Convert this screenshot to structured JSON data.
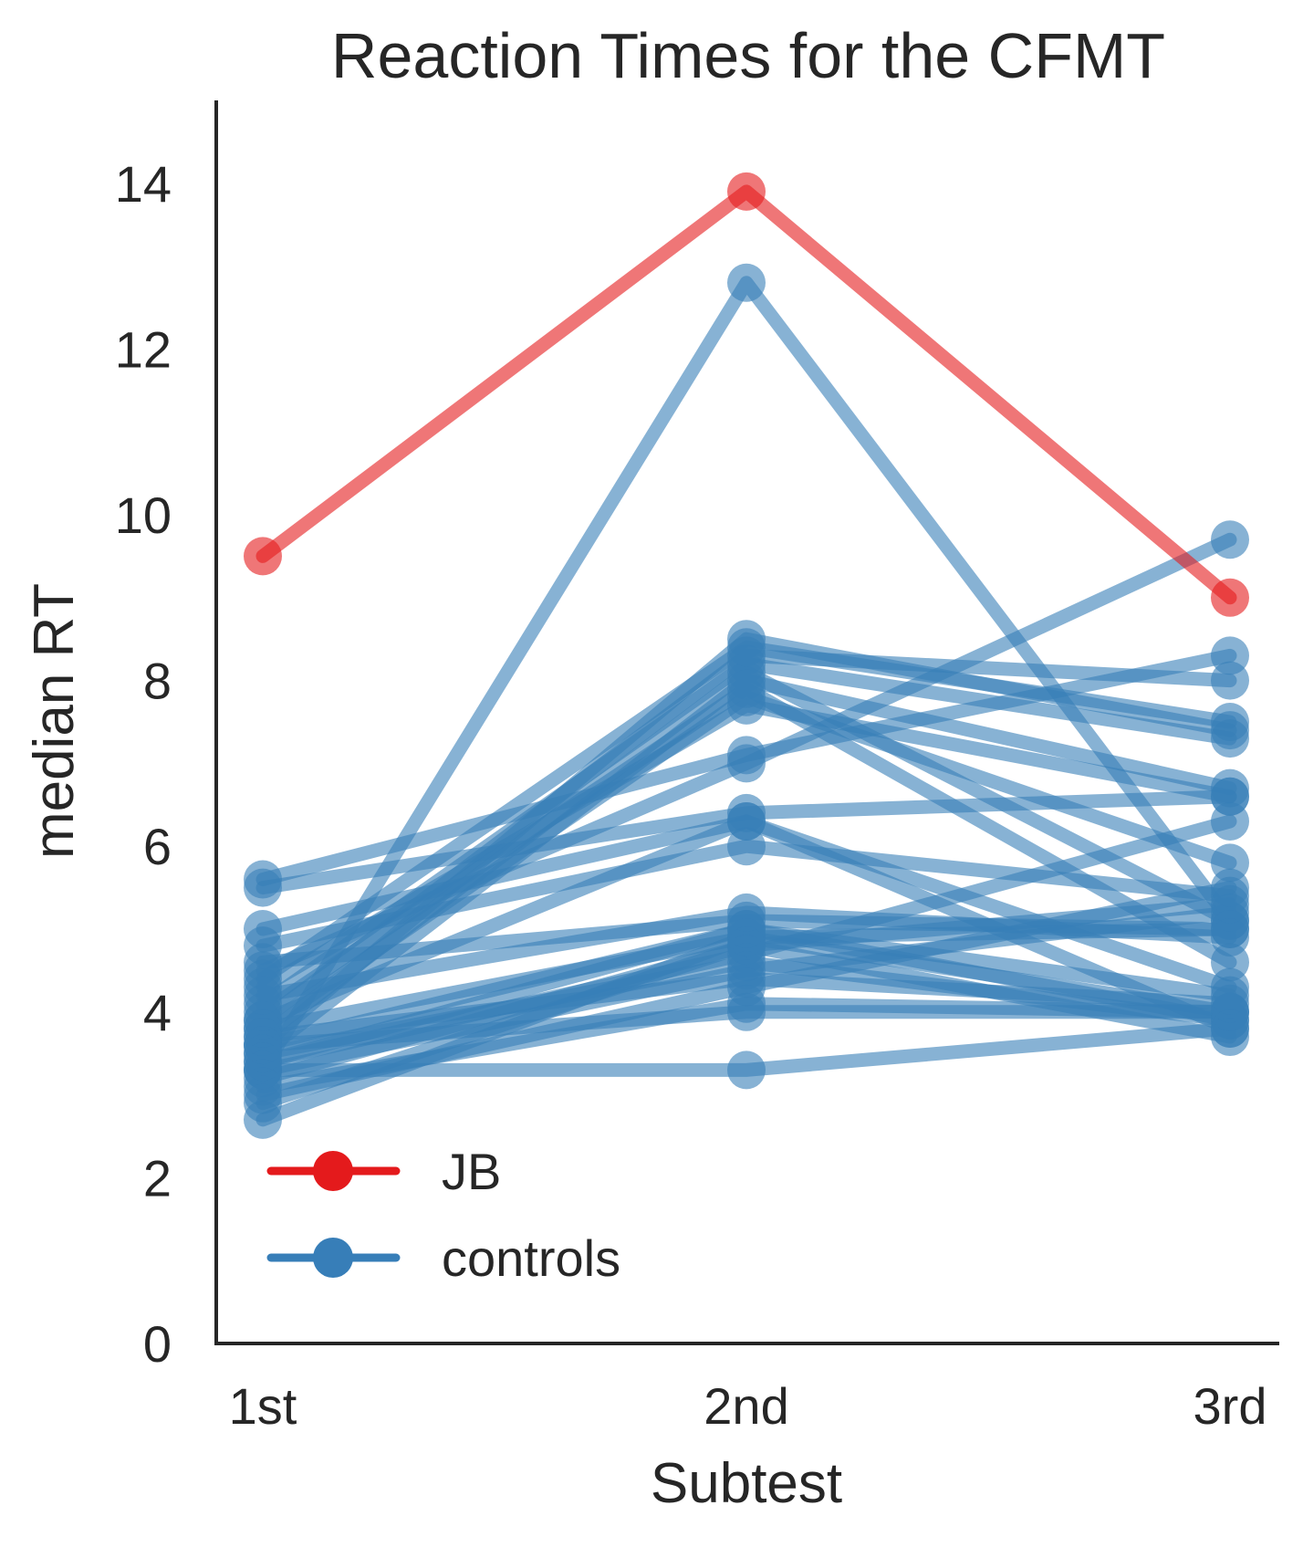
{
  "chart_data": {
    "type": "line",
    "title": "Reaction Times for the CFMT",
    "xlabel": "Subtest",
    "ylabel": "median RT",
    "categories": [
      "1st",
      "2nd",
      "3rd"
    ],
    "ylim": [
      0,
      15
    ],
    "yticks": [
      0,
      2,
      4,
      6,
      8,
      10,
      12,
      14
    ],
    "grid": false,
    "legend": {
      "position": "lower-left",
      "entries": [
        "JB",
        "controls"
      ]
    },
    "colors": {
      "JB": "#e41a1c",
      "controls": "#377eb8",
      "axis": "#262626"
    },
    "series": [
      {
        "name": "JB",
        "values": [
          9.5,
          13.9,
          9.0
        ]
      },
      {
        "name": "controls",
        "group": "controls",
        "values": [
          3.3,
          12.8,
          5.1
        ]
      },
      {
        "name": "controls",
        "group": "controls",
        "values": [
          3.6,
          8.5,
          7.4
        ]
      },
      {
        "name": "controls",
        "group": "controls",
        "values": [
          3.9,
          8.3,
          8.0
        ]
      },
      {
        "name": "controls",
        "group": "controls",
        "values": [
          4.1,
          8.2,
          7.3
        ]
      },
      {
        "name": "controls",
        "group": "controls",
        "values": [
          3.5,
          8.0,
          6.7
        ]
      },
      {
        "name": "controls",
        "group": "controls",
        "values": [
          3.8,
          7.8,
          5.8
        ]
      },
      {
        "name": "controls",
        "group": "controls",
        "values": [
          4.3,
          7.7,
          6.6
        ]
      },
      {
        "name": "controls",
        "group": "controls",
        "values": [
          3.7,
          8.1,
          5.1
        ]
      },
      {
        "name": "controls",
        "group": "controls",
        "values": [
          4.4,
          8.4,
          7.5
        ]
      },
      {
        "name": "controls",
        "group": "controls",
        "values": [
          4.0,
          7.9,
          4.6
        ]
      },
      {
        "name": "controls",
        "group": "controls",
        "values": [
          4.5,
          7.0,
          9.7
        ]
      },
      {
        "name": "controls",
        "group": "controls",
        "values": [
          5.6,
          7.1,
          8.3
        ]
      },
      {
        "name": "controls",
        "group": "controls",
        "values": [
          5.5,
          6.4,
          6.6
        ]
      },
      {
        "name": "controls",
        "group": "controls",
        "values": [
          5.0,
          6.3,
          4.3
        ]
      },
      {
        "name": "controls",
        "group": "controls",
        "values": [
          4.8,
          6.0,
          5.4
        ]
      },
      {
        "name": "controls",
        "group": "controls",
        "values": [
          3.9,
          6.3,
          3.8
        ]
      },
      {
        "name": "controls",
        "group": "controls",
        "values": [
          4.6,
          5.1,
          5.0
        ]
      },
      {
        "name": "controls",
        "group": "controls",
        "values": [
          3.6,
          5.0,
          3.9
        ]
      },
      {
        "name": "controls",
        "group": "controls",
        "values": [
          3.2,
          4.8,
          3.7
        ]
      },
      {
        "name": "controls",
        "group": "controls",
        "values": [
          3.4,
          4.7,
          6.3
        ]
      },
      {
        "name": "controls",
        "group": "controls",
        "values": [
          3.8,
          4.9,
          4.0
        ]
      },
      {
        "name": "controls",
        "group": "controls",
        "values": [
          3.3,
          4.5,
          5.2
        ]
      },
      {
        "name": "controls",
        "group": "controls",
        "values": [
          3.5,
          4.6,
          3.9
        ]
      },
      {
        "name": "controls",
        "group": "controls",
        "values": [
          4.2,
          5.2,
          4.9
        ]
      },
      {
        "name": "controls",
        "group": "controls",
        "values": [
          3.7,
          4.4,
          4.1
        ]
      },
      {
        "name": "controls",
        "group": "controls",
        "values": [
          3.0,
          4.3,
          5.5
        ]
      },
      {
        "name": "controls",
        "group": "controls",
        "values": [
          3.1,
          4.1,
          4.0
        ]
      },
      {
        "name": "controls",
        "group": "controls",
        "values": [
          3.6,
          4.0,
          4.0
        ]
      },
      {
        "name": "controls",
        "group": "controls",
        "values": [
          3.3,
          3.3,
          3.8
        ]
      },
      {
        "name": "controls",
        "group": "controls",
        "values": [
          2.7,
          4.9,
          5.0
        ]
      },
      {
        "name": "controls",
        "group": "controls",
        "values": [
          2.9,
          4.8,
          5.3
        ]
      },
      {
        "name": "controls",
        "group": "controls",
        "values": [
          3.4,
          5.0,
          4.2
        ]
      }
    ]
  }
}
